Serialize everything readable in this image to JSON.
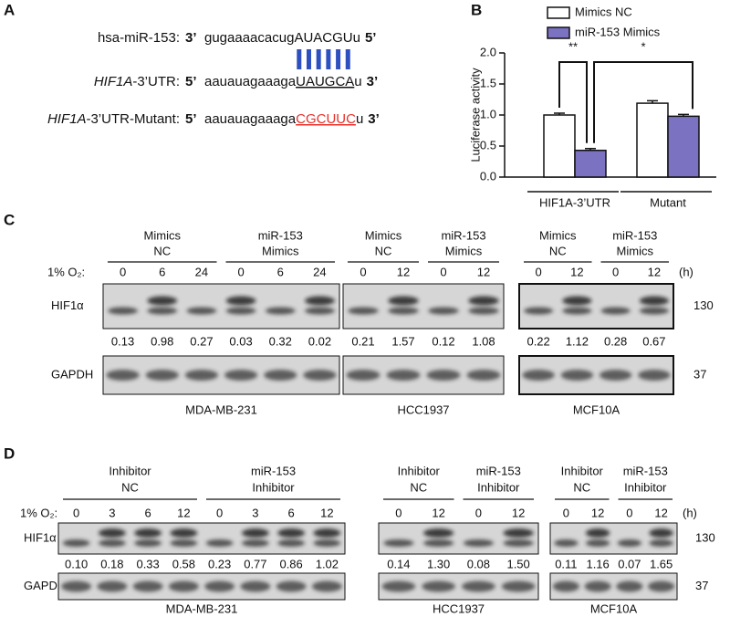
{
  "panels": {
    "A": {
      "label": "A",
      "mirna": {
        "name": "hsa-miR-153:",
        "left": "3’",
        "seq": "gugaaaacacug",
        "site": "AUACGU",
        "tail": "u",
        "right": "5’"
      },
      "utr": {
        "gene": "HIF1A",
        "name": "-3’UTR:",
        "left": "5’",
        "seq": "aauauagaaaga",
        "site": "UAUGCA",
        "tail": "u",
        "right": "3’"
      },
      "mutant": {
        "gene": "HIF1A",
        "name": "-3’UTR-Mutant:",
        "left": "5’",
        "seq": "aauauagaaaga",
        "site": "CGCUUC",
        "tail": "u",
        "right": "3’"
      }
    },
    "C": {
      "label": "C",
      "o2": "1% O₂:",
      "unit": "(h)",
      "rows": [
        "HIF1α",
        "GAPDH"
      ],
      "markers": [
        "130",
        "37"
      ],
      "blots": [
        {
          "cell": "MDA-MB-231",
          "groups": [
            {
              "title": [
                "Mimics",
                "NC"
              ],
              "times": [
                "0",
                "6",
                "24"
              ]
            },
            {
              "title": [
                "miR-153",
                "Mimics"
              ],
              "times": [
                "0",
                "6",
                "24"
              ]
            }
          ],
          "hif": [
            "0.13",
            "0.98",
            "0.27",
            "0.03",
            "0.32",
            "0.02"
          ]
        },
        {
          "cell": "HCC1937",
          "groups": [
            {
              "title": [
                "Mimics",
                "NC"
              ],
              "times": [
                "0",
                "12"
              ]
            },
            {
              "title": [
                "miR-153",
                "Mimics"
              ],
              "times": [
                "0",
                "12"
              ]
            }
          ],
          "hif": [
            "0.21",
            "1.57",
            "0.12",
            "1.08"
          ]
        },
        {
          "cell": "MCF10A",
          "groups": [
            {
              "title": [
                "Mimics",
                "NC"
              ],
              "times": [
                "0",
                "12"
              ]
            },
            {
              "title": [
                "miR-153",
                "Mimics"
              ],
              "times": [
                "0",
                "12"
              ]
            }
          ],
          "hif": [
            "0.22",
            "1.12",
            "0.28",
            "0.67"
          ]
        }
      ]
    },
    "D": {
      "label": "D",
      "o2": "1% O₂:",
      "unit": "(h)",
      "rows": [
        "HIF1α",
        "GAPDH"
      ],
      "markers": [
        "130",
        "37"
      ],
      "blots": [
        {
          "cell": "MDA-MB-231",
          "groups": [
            {
              "title": [
                "Inhibitor",
                "NC"
              ],
              "times": [
                "0",
                "3",
                "6",
                "12"
              ]
            },
            {
              "title": [
                "miR-153",
                "Inhibitor"
              ],
              "times": [
                "0",
                "3",
                "6",
                "12"
              ]
            }
          ],
          "hif": [
            "0.10",
            "0.18",
            "0.33",
            "0.58",
            "0.23",
            "0.77",
            "0.86",
            "1.02"
          ]
        },
        {
          "cell": "HCC1937",
          "groups": [
            {
              "title": [
                "Inhibitor",
                "NC"
              ],
              "times": [
                "0",
                "12"
              ]
            },
            {
              "title": [
                "miR-153",
                "Inhibitor"
              ],
              "times": [
                "0",
                "12"
              ]
            }
          ],
          "hif": [
            "0.14",
            "1.30",
            "0.08",
            "1.50"
          ]
        },
        {
          "cell": "MCF10A",
          "groups": [
            {
              "title": [
                "Inhibitor",
                "NC"
              ],
              "times": [
                "0",
                "12"
              ]
            },
            {
              "title": [
                "miR-153",
                "Inhibitor"
              ],
              "times": [
                "0",
                "12"
              ]
            }
          ],
          "hif": [
            "0.11",
            "1.16",
            "0.07",
            "1.65"
          ]
        }
      ]
    }
  },
  "chart_data": {
    "type": "bar",
    "panel_label": "B",
    "ylabel": "Luciferase activity",
    "categories": [
      "HIF1A-3’UTR",
      "Mutant"
    ],
    "series": [
      {
        "name": "Mimics NC",
        "color": "#ffffff",
        "values": [
          1.0,
          1.19
        ],
        "errors": [
          0.03,
          0.04
        ]
      },
      {
        "name": "miR-153 Mimics",
        "color": "#7b72c2",
        "values": [
          0.43,
          0.98
        ],
        "errors": [
          0.03,
          0.03
        ]
      }
    ],
    "ylim": [
      0,
      2.0
    ],
    "yticks": [
      {
        "value": 0,
        "label": "0.0"
      },
      0.5,
      {
        "value": 1.0,
        "label": "1.0"
      },
      1.5,
      {
        "value": 2.0,
        "label": "2.0"
      }
    ],
    "annotations": [
      "**",
      "*"
    ],
    "legend": "top"
  }
}
